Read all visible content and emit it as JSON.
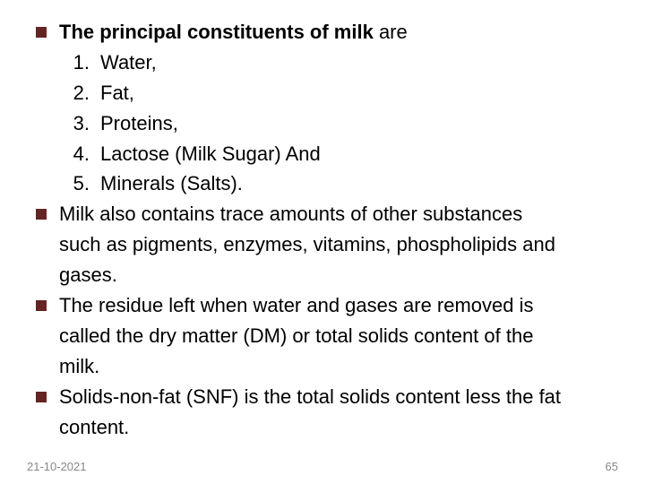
{
  "colors": {
    "bullet": "#632423",
    "text": "#000000",
    "footer": "#888888",
    "background": "#ffffff"
  },
  "typography": {
    "body_fontsize": 22,
    "footer_fontsize": 13,
    "line_height": 1.45,
    "font_family": "Arial"
  },
  "heading": {
    "bold_part": "The principal constituents of milk",
    "rest": " are"
  },
  "list": [
    {
      "num": "1.",
      "text": "Water,"
    },
    {
      "num": "2.",
      "text": "Fat,"
    },
    {
      "num": "3.",
      "text": "Proteins,"
    },
    {
      "num": "4.",
      "text": "Lactose (Milk Sugar) And"
    },
    {
      "num": "5.",
      "text": "Minerals (Salts)."
    }
  ],
  "para2": {
    "line1": "Milk also contains trace amounts of other substances",
    "line2": "such as pigments, enzymes, vitamins, phospholipids and",
    "line3": "gases."
  },
  "para3": {
    "line1": "The residue left when water and gases are removed is",
    "line2": "called the dry matter (DM) or total solids content of the",
    "line3": "milk."
  },
  "para4": {
    "line1": "Solids-non-fat (SNF) is the total solids content less the fat",
    "line2": "content."
  },
  "footer": {
    "date": "21-10-2021",
    "page": "65"
  }
}
